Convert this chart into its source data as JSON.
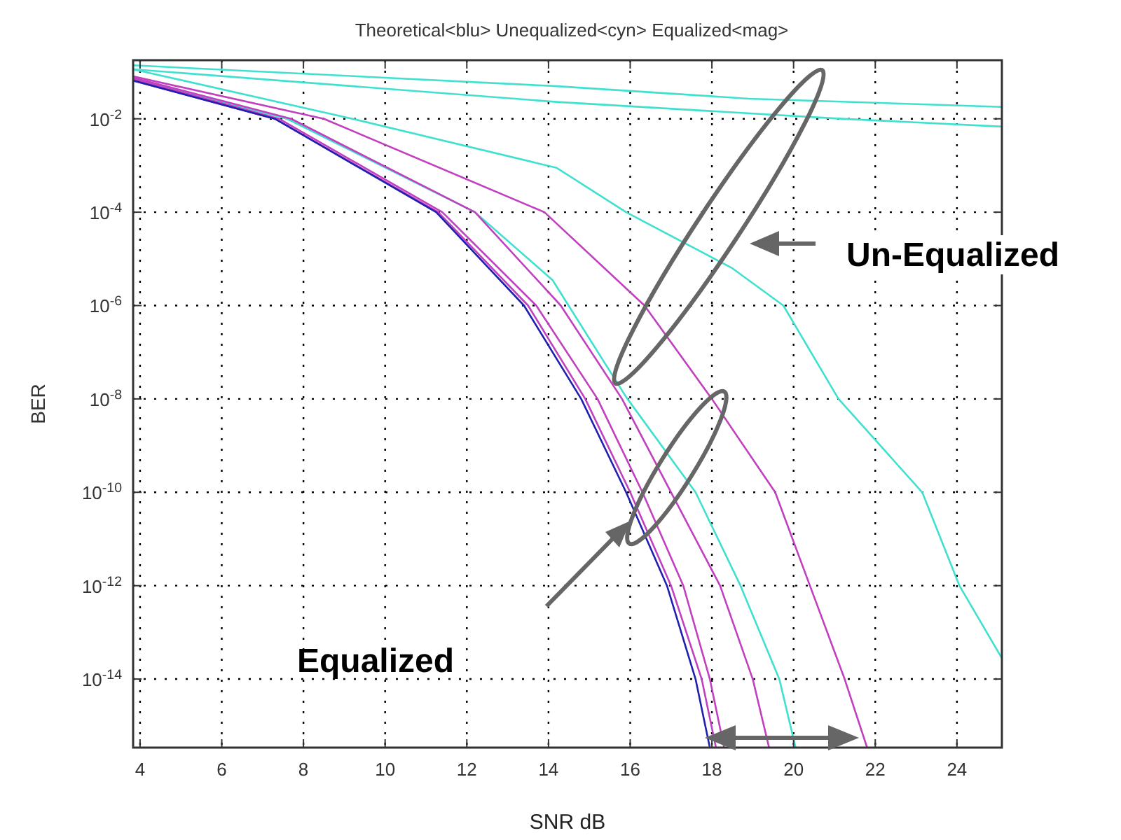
{
  "chart_data": {
    "type": "line",
    "title": "Theoretical<blu> Unequalized<cyn> Equalized<mag>",
    "xlabel": "SNR dB",
    "ylabel": "BER",
    "log": "y",
    "grid": true,
    "line_style": "solid",
    "marker": "none",
    "xlim": [
      3.83,
      25.1
    ],
    "xticks": [
      4,
      6,
      8,
      10,
      12,
      14,
      16,
      18,
      20,
      22,
      24
    ],
    "ylim": [
      3.4e-16,
      0.18
    ],
    "yticks": [
      {
        "value": 0.01,
        "label": "10$^{-2}$"
      },
      {
        "value": 0.0001,
        "label": "10$^{-4}$"
      },
      {
        "value": 1e-06,
        "label": "10$^{-6}$"
      },
      {
        "value": 1e-08,
        "label": "10$^{-8}$"
      },
      {
        "value": 1e-10,
        "label": "10$^{-10}$"
      },
      {
        "value": 1e-12,
        "label": "10$^{-12}$"
      },
      {
        "value": 1e-14,
        "label": "10$^{-14}$"
      }
    ],
    "annotations": [
      "Un-Equalized",
      "Equalized"
    ],
    "series": [
      {
        "color": "#40e0d0",
        "x": [
          3.83,
          14.2,
          18.9,
          25.1
        ],
        "values": [
          0.14,
          0.05,
          0.027,
          0.018
        ]
      },
      {
        "color": "#40e0d0",
        "x": [
          3.83,
          14.2,
          21,
          25.1
        ],
        "values": [
          0.115,
          0.023,
          0.0102,
          0.0068
        ]
      },
      {
        "color": "#40e0d0",
        "x": [
          3.83,
          9.2,
          14.2,
          15.9,
          18.5,
          19.75,
          21.1,
          23.15,
          24.06,
          25.1
        ],
        "values": [
          0.115,
          0.01,
          0.00089,
          0.0001,
          6.3e-06,
          1e-06,
          1e-08,
          1e-10,
          1e-12,
          2.8e-14
        ]
      },
      {
        "color": "#40e0d0",
        "x": [
          3.83,
          7.6,
          12.2,
          14.1,
          15.9,
          17.6,
          18.7,
          19.65,
          20.05
        ],
        "values": [
          0.071,
          0.01,
          0.0001,
          3.5e-06,
          1.1e-08,
          1e-10,
          1e-12,
          1e-14,
          3.4e-16
        ]
      },
      {
        "color": "#c040c0",
        "x": [
          3.83,
          8.5,
          13.9,
          16.35,
          18.0,
          19.55,
          20.4,
          21.25,
          21.8
        ],
        "values": [
          0.081,
          0.01,
          0.0001,
          1e-06,
          1e-08,
          1e-10,
          1e-12,
          1e-14,
          3.4e-16
        ]
      },
      {
        "color": "#c040c0",
        "x": [
          3.83,
          7.7,
          12.2,
          14.3,
          15.8,
          17.0,
          18.2,
          19.0,
          19.4
        ],
        "values": [
          0.076,
          0.01,
          0.0001,
          1e-06,
          1e-08,
          1e-10,
          1e-12,
          1e-14,
          3.4e-16
        ]
      },
      {
        "color": "#c040c0",
        "x": [
          3.83,
          7.4,
          11.4,
          13.7,
          15.2,
          16.3,
          17.3,
          17.95,
          18.3
        ],
        "values": [
          0.071,
          0.01,
          0.0001,
          1e-06,
          1e-08,
          1e-10,
          1e-12,
          1e-14,
          3.4e-16
        ]
      },
      {
        "color": "#c040c0",
        "x": [
          3.83,
          7.3,
          11.3,
          13.5,
          14.9,
          16.0,
          17.0,
          17.75,
          18.1
        ],
        "values": [
          0.066,
          0.01,
          0.0001,
          1e-06,
          1e-08,
          1e-10,
          1e-12,
          1e-14,
          3.4e-16
        ]
      },
      {
        "color": "#2020b0",
        "x": [
          3.83,
          7.3,
          11.25,
          13.4,
          14.8,
          15.9,
          16.9,
          17.6,
          17.95
        ],
        "values": [
          0.066,
          0.01,
          0.0001,
          1e-06,
          1e-08,
          1e-10,
          1e-12,
          1e-14,
          3.4e-16
        ]
      }
    ]
  }
}
